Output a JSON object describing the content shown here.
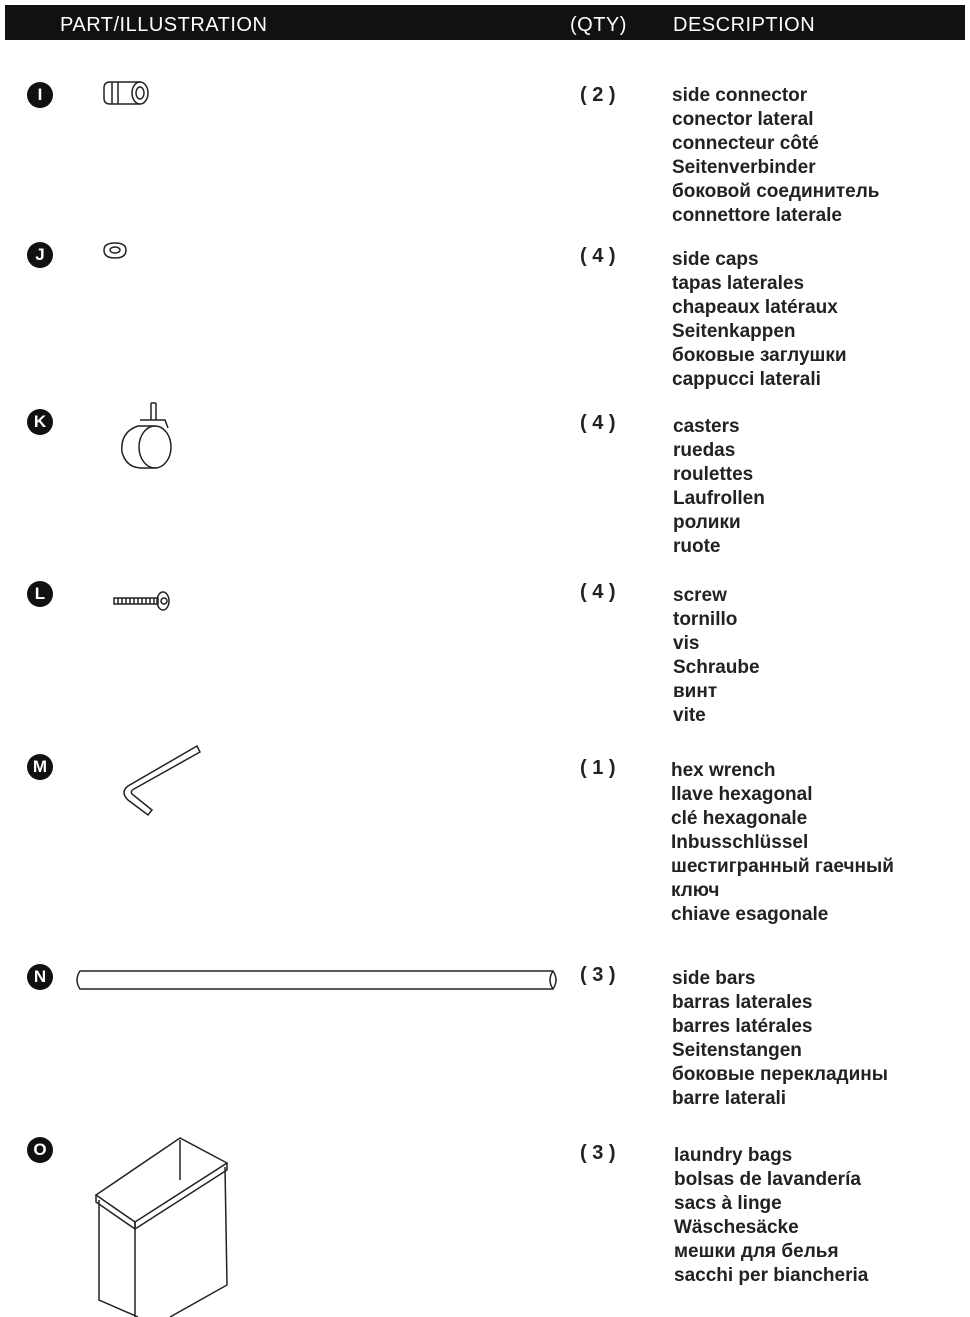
{
  "header": {
    "part": "PART/ILLUSTRATION",
    "qty": "(QTY)",
    "description": "DESCRIPTION"
  },
  "parts": [
    {
      "letter": "I",
      "qty": "( 2 )",
      "description": [
        "side connector",
        "conector lateral",
        "connecteur côté",
        "Seitenverbinder",
        "боковой соединитель",
        "connettore laterale"
      ]
    },
    {
      "letter": "J",
      "qty": "( 4 )",
      "description": [
        "side caps",
        "tapas laterales",
        "chapeaux latéraux",
        "Seitenkappen",
        "боковые заглушки",
        "cappucci laterali"
      ]
    },
    {
      "letter": "K",
      "qty": "( 4 )",
      "description": [
        "casters",
        "ruedas",
        "roulettes",
        "Laufrollen",
        "ролики",
        "ruote"
      ]
    },
    {
      "letter": "L",
      "qty": "( 4 )",
      "description": [
        "screw",
        "tornillo",
        "vis",
        "Schraube",
        "винт",
        "vite"
      ]
    },
    {
      "letter": "M",
      "qty": "( 1 )",
      "description": [
        "hex wrench",
        "llave hexagonal",
        "clé hexagonale",
        "Inbusschlüssel",
        "шестигранный гаечный ключ",
        "chiave esagonale"
      ]
    },
    {
      "letter": "N",
      "qty": "( 3 )",
      "description": [
        "side bars",
        "barras laterales",
        "barres latérales",
        "Seitenstangen",
        "боковые перекладины",
        "barre laterali"
      ]
    },
    {
      "letter": "O",
      "qty": "( 3 )",
      "description": [
        "laundry bags",
        "bolsas de lavandería",
        "sacs à linge",
        "Wäschesäcke",
        "мешки для белья",
        "sacchi per biancheria"
      ]
    }
  ]
}
